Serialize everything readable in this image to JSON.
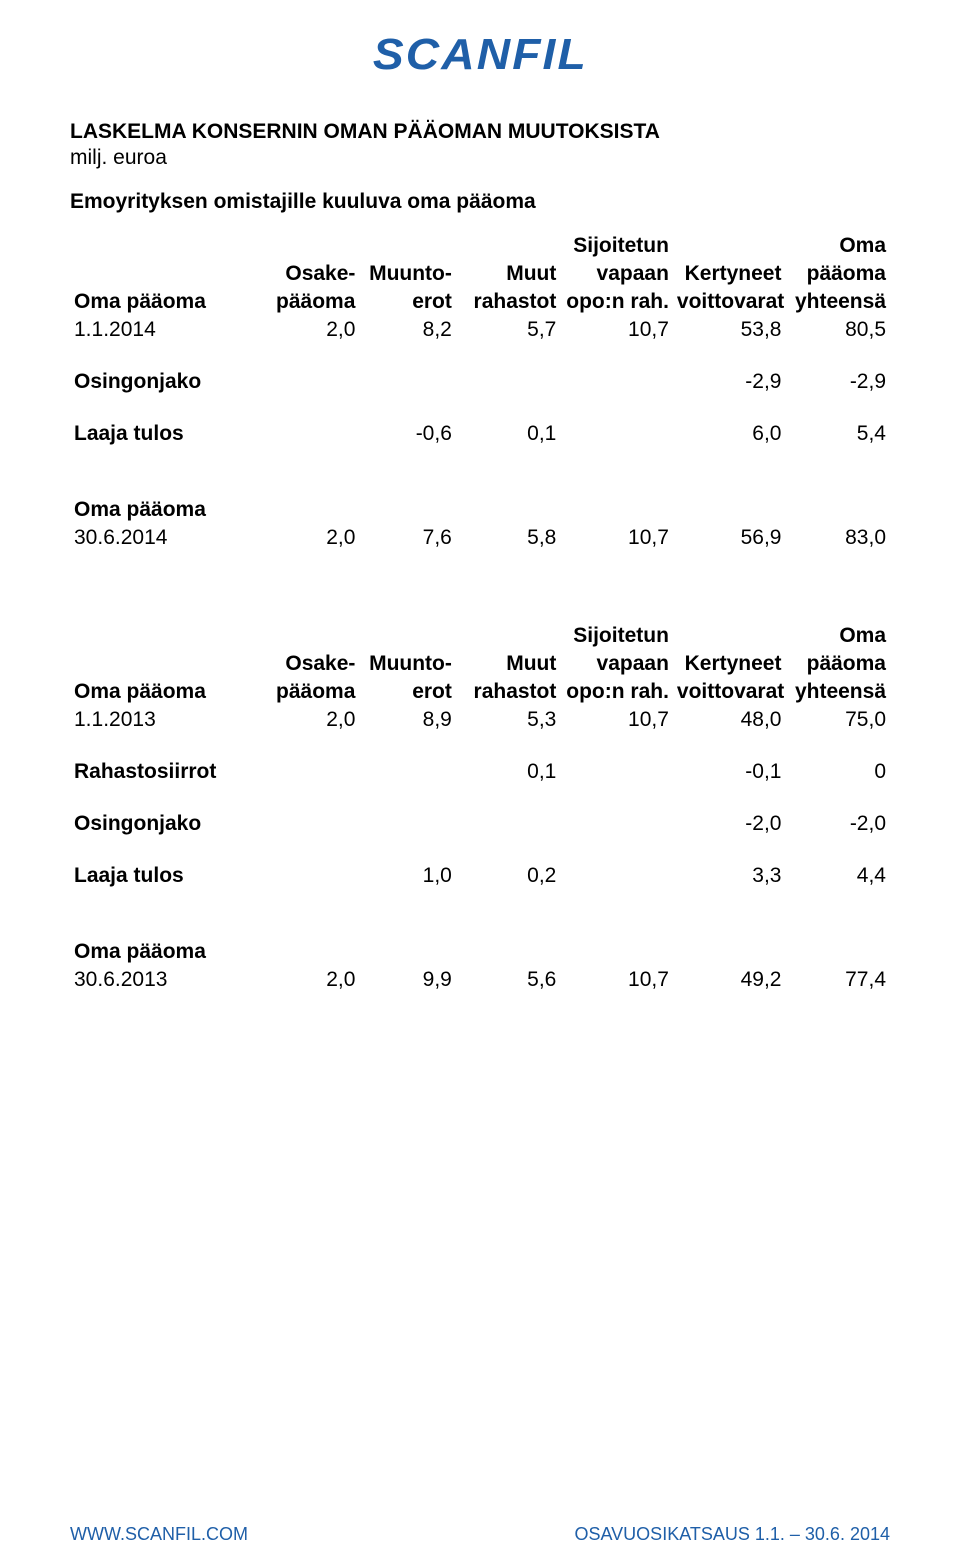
{
  "brand": {
    "logo_text": "SCANFIL"
  },
  "title_line1": "LASKELMA KONSERNIN OMAN PÄÄOMAN MUUTOKSISTA",
  "title_line2": "milj. euroa",
  "section1_label": "Emoyrityksen omistajille kuuluva oma pääoma",
  "columns": {
    "c1a": "Osake-",
    "c1b": "pääoma",
    "c2a": "Muunto-",
    "c2b": "erot",
    "c3a": "Muut",
    "c3b": "rahastot",
    "c4a": "Sijoitetun",
    "c4b": "vapaan",
    "c4c": "opo:n rah.",
    "c5a": "Kertyneet",
    "c5b": "voittovarat",
    "c6a": "Oma",
    "c6b": "pääoma",
    "c6c": "yhteensä"
  },
  "table1": {
    "opening_label": "Oma pääoma",
    "opening_date": "1.1.2014",
    "opening_values": [
      "2,0",
      "8,2",
      "5,7",
      "10,7",
      "53,8",
      "80,5"
    ],
    "dividend_label": "Osingonjako",
    "dividend_values": [
      "",
      "",
      "",
      "",
      "-2,9",
      "-2,9"
    ],
    "comp_label": "Laaja tulos",
    "comp_values": [
      "",
      "-0,6",
      "0,1",
      "",
      "6,0",
      "5,4"
    ],
    "closing_label": "Oma pääoma",
    "closing_date": "30.6.2014",
    "closing_values": [
      "2,0",
      "7,6",
      "5,8",
      "10,7",
      "56,9",
      "83,0"
    ]
  },
  "table2": {
    "opening_label": "Oma pääoma",
    "opening_date": "1.1.2013",
    "opening_values": [
      "2,0",
      "8,9",
      "5,3",
      "10,7",
      "48,0",
      "75,0"
    ],
    "transfer_label": "Rahastosiirrot",
    "transfer_values": [
      "",
      "",
      "0,1",
      "",
      "-0,1",
      "0"
    ],
    "dividend_label": "Osingonjako",
    "dividend_values": [
      "",
      "",
      "",
      "",
      "-2,0",
      "-2,0"
    ],
    "comp_label": "Laaja tulos",
    "comp_values": [
      "",
      "1,0",
      "0,2",
      "",
      "3,3",
      "4,4"
    ],
    "closing_label": "Oma pääoma",
    "closing_date": "30.6.2013",
    "closing_values": [
      "2,0",
      "9,9",
      "5,6",
      "10,7",
      "49,2",
      "77,4"
    ]
  },
  "footer": {
    "left": "WWW.SCANFIL.COM",
    "right": "OSAVUOSIKATSAUS 1.1. – 30.6. 2014"
  },
  "colors": {
    "brand_blue": "#1f5fa8",
    "text": "#000000",
    "background": "#ffffff"
  }
}
